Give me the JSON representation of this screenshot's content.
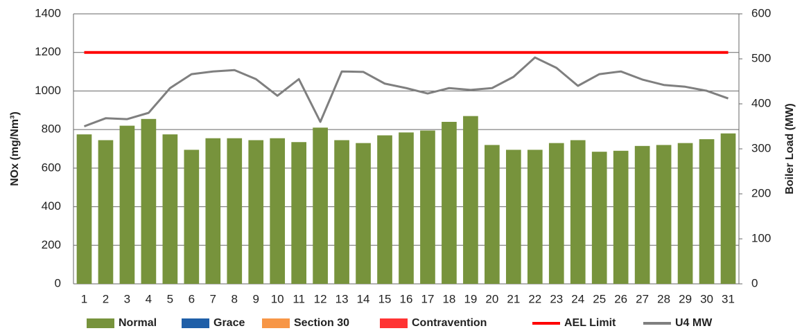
{
  "chart_data": {
    "type": "bar",
    "categories": [
      "1",
      "2",
      "3",
      "4",
      "5",
      "6",
      "7",
      "8",
      "9",
      "10",
      "11",
      "12",
      "13",
      "14",
      "15",
      "16",
      "17",
      "18",
      "19",
      "20",
      "21",
      "22",
      "23",
      "24",
      "25",
      "26",
      "27",
      "28",
      "29",
      "30",
      "31"
    ],
    "ylabel": "NOx (mg/Nm³)",
    "y2label": "Boiler Load (MW)",
    "ylim": [
      0,
      1400
    ],
    "yticks": [
      0,
      200,
      400,
      600,
      800,
      1000,
      1200,
      1400
    ],
    "y2lim": [
      0,
      600
    ],
    "y2ticks": [
      0,
      100,
      200,
      300,
      400,
      500,
      600
    ],
    "grid": true,
    "legend": "bottom",
    "series": [
      {
        "name": "Normal",
        "type": "bar",
        "color": "#77933c",
        "values": [
          775,
          745,
          820,
          855,
          775,
          695,
          755,
          755,
          745,
          755,
          735,
          810,
          745,
          730,
          770,
          785,
          795,
          840,
          870,
          720,
          695,
          695,
          730,
          745,
          685,
          690,
          715,
          720,
          730,
          750,
          780
        ]
      },
      {
        "name": "Grace",
        "type": "bar",
        "color": "#1f5fa8"
      },
      {
        "name": "Section 30",
        "type": "bar",
        "color": "#f79646"
      },
      {
        "name": "Contravention",
        "type": "bar",
        "color": "#ff3333"
      },
      {
        "name": "AEL Limit",
        "type": "line",
        "color": "#ff0000",
        "values": [
          1200,
          1200,
          1200,
          1200,
          1200,
          1200,
          1200,
          1200,
          1200,
          1200,
          1200,
          1200,
          1200,
          1200,
          1200,
          1200,
          1200,
          1200,
          1200,
          1200,
          1200,
          1200,
          1200,
          1200,
          1200,
          1200,
          1200,
          1200,
          1200,
          1200,
          1200
        ]
      },
      {
        "name": "U4 MW",
        "type": "line",
        "axis": "y2",
        "color": "#7f7f7f",
        "values": [
          350,
          368,
          366,
          380,
          435,
          466,
          472,
          475,
          455,
          418,
          455,
          360,
          472,
          471,
          445,
          435,
          423,
          435,
          431,
          435,
          460,
          503,
          480,
          440,
          466,
          472,
          454,
          442,
          438,
          429,
          412
        ]
      }
    ]
  }
}
